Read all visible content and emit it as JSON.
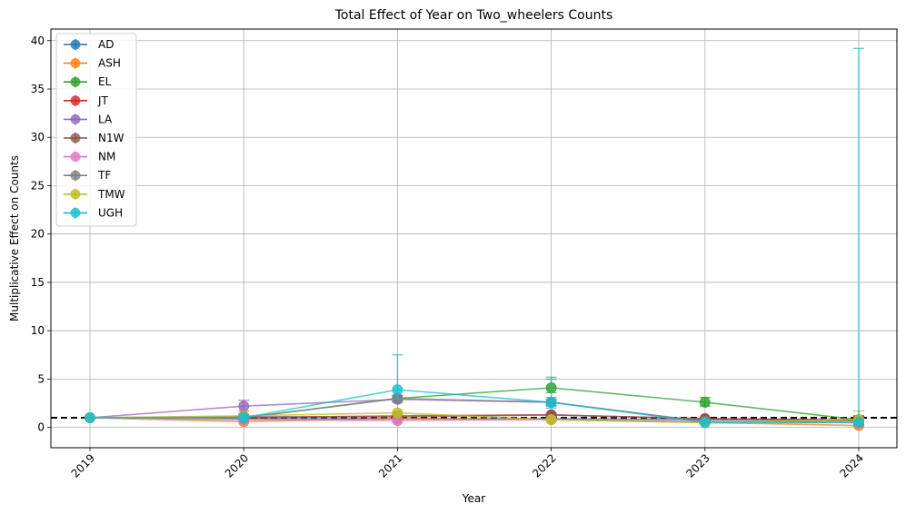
{
  "chart_data": {
    "type": "line",
    "title": "Total Effect of Year on Two_wheelers Counts",
    "xlabel": "Year",
    "ylabel": "Multiplicative Effect on Counts",
    "x": [
      2019,
      2020,
      2021,
      2022,
      2023,
      2024
    ],
    "xticks": [
      "2019",
      "2020",
      "2021",
      "2022",
      "2023",
      "2024"
    ],
    "yticks": [
      "0",
      "5",
      "10",
      "15",
      "20",
      "25",
      "30",
      "35",
      "40"
    ],
    "ylim": [
      -2.1,
      41.2
    ],
    "grid": true,
    "legend_position": "top-left",
    "reference_line": {
      "y": 1,
      "style": "dashed",
      "color": "#000000"
    },
    "series": [
      {
        "name": "AD",
        "color": "#1f77b4",
        "values": [
          1,
          0.9,
          0.9,
          0.9,
          0.8,
          0.7
        ],
        "err_low": [
          0,
          0.1,
          0.15,
          0.15,
          0.1,
          0.3
        ],
        "err_high": [
          0,
          0.1,
          0.15,
          0.15,
          0.1,
          0.5
        ]
      },
      {
        "name": "ASH",
        "color": "#ff7f0e",
        "values": [
          1,
          0.6,
          0.9,
          0.8,
          0.5,
          0.2
        ],
        "err_low": [
          0,
          0.1,
          0.15,
          0.15,
          0.1,
          0.1
        ],
        "err_high": [
          0,
          0.1,
          0.15,
          0.15,
          0.1,
          0.3
        ]
      },
      {
        "name": "EL",
        "color": "#2ca02c",
        "values": [
          1,
          1.0,
          3.0,
          4.1,
          2.6,
          0.8
        ],
        "err_low": [
          0,
          0.2,
          0.3,
          0.5,
          0.4,
          0.3
        ],
        "err_high": [
          0,
          0.2,
          0.3,
          0.9,
          0.5,
          0.4
        ]
      },
      {
        "name": "JT",
        "color": "#d62728",
        "values": [
          1,
          1.0,
          1.2,
          1.3,
          0.9,
          0.8
        ],
        "err_low": [
          0,
          0.1,
          0.15,
          0.15,
          0.1,
          0.2
        ],
        "err_high": [
          0,
          0.1,
          0.15,
          0.15,
          0.1,
          0.3
        ]
      },
      {
        "name": "LA",
        "color": "#9467bd",
        "values": [
          1,
          2.2,
          2.9,
          2.6,
          0.6,
          0.5
        ],
        "err_low": [
          0,
          0.5,
          0.3,
          0.4,
          0.2,
          0.2
        ],
        "err_high": [
          0,
          0.6,
          0.4,
          0.5,
          0.2,
          0.3
        ]
      },
      {
        "name": "N1W",
        "color": "#8c564b",
        "values": [
          1,
          1.1,
          1.1,
          1.3,
          0.9,
          0.7
        ],
        "err_low": [
          0,
          0.1,
          0.15,
          0.15,
          0.1,
          0.2
        ],
        "err_high": [
          0,
          0.1,
          0.15,
          0.15,
          0.1,
          0.3
        ]
      },
      {
        "name": "NM",
        "color": "#e377c2",
        "values": [
          1,
          0.8,
          0.7,
          0.8,
          0.6,
          0.5
        ],
        "err_low": [
          0,
          0.1,
          0.1,
          0.1,
          0.1,
          0.2
        ],
        "err_high": [
          0,
          0.1,
          0.1,
          0.1,
          0.1,
          0.3
        ]
      },
      {
        "name": "TF",
        "color": "#7f7f7f",
        "values": [
          1,
          1.0,
          3.0,
          2.6,
          0.6,
          0.5
        ],
        "err_low": [
          0,
          0.1,
          0.3,
          0.3,
          0.1,
          0.2
        ],
        "err_high": [
          0,
          0.1,
          0.3,
          0.3,
          0.1,
          0.3
        ]
      },
      {
        "name": "TMW",
        "color": "#bcbd22",
        "values": [
          1,
          1.2,
          1.5,
          0.8,
          0.5,
          0.8
        ],
        "err_low": [
          0,
          0.2,
          0.2,
          0.1,
          0.1,
          0.3
        ],
        "err_high": [
          0,
          0.2,
          0.2,
          0.1,
          0.1,
          0.9
        ]
      },
      {
        "name": "UGH",
        "color": "#17becf",
        "values": [
          1,
          1.0,
          3.9,
          2.6,
          0.5,
          0.5
        ],
        "err_low": [
          0,
          0.2,
          1.0,
          0.6,
          0.1,
          0.3
        ],
        "err_high": [
          0,
          0.3,
          3.6,
          2.6,
          0.2,
          38.7
        ]
      }
    ]
  }
}
